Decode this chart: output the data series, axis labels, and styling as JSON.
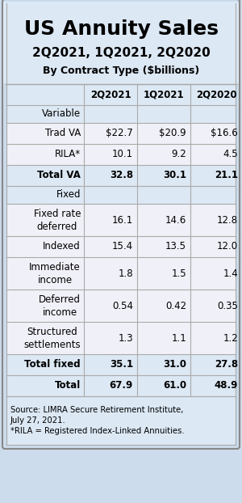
{
  "title": "US Annuity Sales",
  "subtitle1": "2Q2021, 1Q2021, 2Q2020",
  "subtitle2": "By Contract Type ($billions)",
  "col_headers": [
    "",
    "2Q2021",
    "1Q2021",
    "2Q2020"
  ],
  "rows": [
    {
      "label": "Variable",
      "values": [
        "",
        "",
        ""
      ],
      "type": "section"
    },
    {
      "label": "Trad VA",
      "values": [
        "$22.7",
        "$20.9",
        "$16.6"
      ],
      "type": "data"
    },
    {
      "label": "RILA*",
      "values": [
        "10.1",
        "9.2",
        "4.5"
      ],
      "type": "data"
    },
    {
      "label": "Total VA",
      "values": [
        "32.8",
        "30.1",
        "21.1"
      ],
      "type": "total"
    },
    {
      "label": "Fixed",
      "values": [
        "",
        "",
        ""
      ],
      "type": "section"
    },
    {
      "label": "Fixed rate\ndeferred",
      "values": [
        "16.1",
        "14.6",
        "12.8"
      ],
      "type": "data"
    },
    {
      "label": "Indexed",
      "values": [
        "15.4",
        "13.5",
        "12.0"
      ],
      "type": "data"
    },
    {
      "label": "Immediate\nincome",
      "values": [
        "1.8",
        "1.5",
        "1.4"
      ],
      "type": "data"
    },
    {
      "label": "Deferred\nincome",
      "values": [
        "0.54",
        "0.42",
        "0.35"
      ],
      "type": "data"
    },
    {
      "label": "Structured\nsettlements",
      "values": [
        "1.3",
        "1.1",
        "1.2"
      ],
      "type": "data"
    },
    {
      "label": "Total fixed",
      "values": [
        "35.1",
        "31.0",
        "27.8"
      ],
      "type": "total"
    },
    {
      "label": "Total",
      "values": [
        "67.9",
        "61.0",
        "48.9"
      ],
      "type": "total"
    }
  ],
  "footer": "Source: LIMRA Secure Retirement Institute,\nJuly 27, 2021.\n*RILA = Registered Index-Linked Annuities.",
  "bg_color": "#ccdcec",
  "header_bg": "#dce8f4",
  "col_header_bg": "#dce8f4",
  "data_bg": "#f0f0f8",
  "section_bg": "#dce8f4",
  "total_bg": "#dce8f4",
  "footer_bg": "#dce8f4",
  "border_color": "#aaaaaa",
  "outer_border_color": "#888888",
  "title_fontsize": 18,
  "sub1_fontsize": 11,
  "sub2_fontsize": 9,
  "table_fontsize": 8.5,
  "footer_fontsize": 7.2
}
